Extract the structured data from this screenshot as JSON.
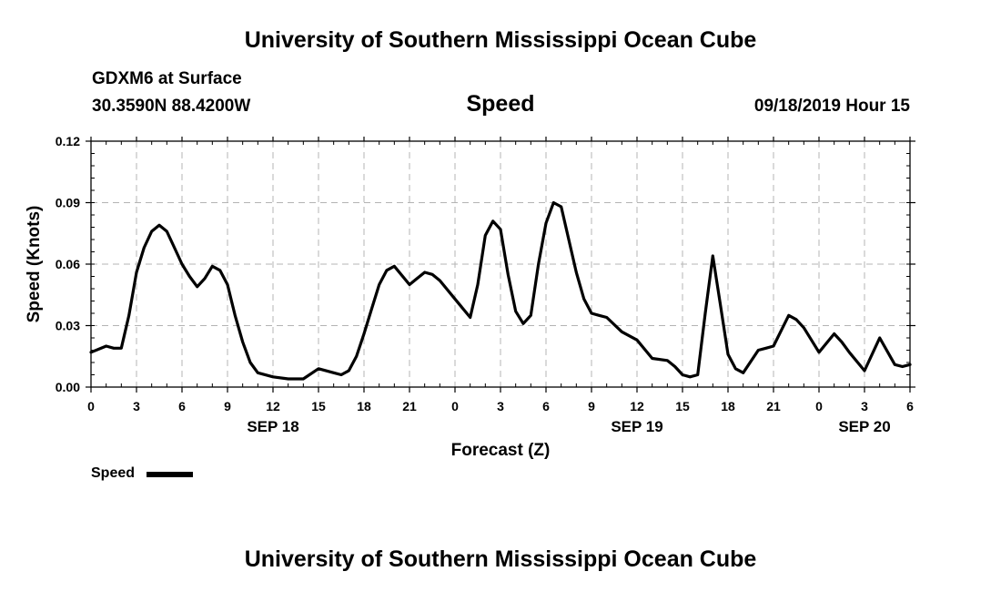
{
  "header": {
    "title": "University of Southern Mississippi Ocean Cube",
    "station": "GDXM6 at Surface",
    "location": "30.3590N 88.4200W",
    "datetime": "09/18/2019 Hour 15"
  },
  "footer": {
    "title": "University of Southern Mississippi Ocean Cube"
  },
  "chart_data": {
    "type": "line",
    "title": "Speed",
    "xlabel": "Forecast (Z)",
    "ylabel": "Speed (Knots)",
    "xlim": [
      0,
      54
    ],
    "ylim": [
      0,
      0.12
    ],
    "grid": true,
    "x_ticks": [
      0,
      3,
      6,
      9,
      12,
      15,
      18,
      21,
      24,
      27,
      30,
      33,
      36,
      39,
      42,
      45,
      48,
      51,
      54
    ],
    "x_tick_labels": [
      "0",
      "3",
      "6",
      "9",
      "12",
      "15",
      "18",
      "21",
      "0",
      "3",
      "6",
      "9",
      "12",
      "15",
      "18",
      "21",
      "0",
      "3",
      "6"
    ],
    "y_ticks": [
      0,
      0.03,
      0.06,
      0.09,
      0.12
    ],
    "y_tick_labels": [
      "0.00",
      "0.03",
      "0.06",
      "0.09",
      "0.12"
    ],
    "date_labels": [
      {
        "label": "SEP 18",
        "x": 12
      },
      {
        "label": "SEP 19",
        "x": 36
      },
      {
        "label": "SEP 20",
        "x": 51
      }
    ],
    "legend": {
      "label": "Speed",
      "position": "bottom-left"
    },
    "series": [
      {
        "name": "Speed",
        "color": "#000000",
        "x": [
          0,
          1,
          1.5,
          2,
          2.5,
          3,
          3.5,
          4,
          4.5,
          5,
          5.5,
          6,
          6.5,
          7,
          7.5,
          8,
          8.5,
          9,
          9.5,
          10,
          10.5,
          11,
          12,
          13,
          14,
          15,
          16,
          16.5,
          17,
          17.5,
          18,
          18.5,
          19,
          19.5,
          20,
          21,
          21.5,
          22,
          22.5,
          23,
          24,
          25,
          25.5,
          26,
          26.5,
          27,
          27.5,
          28,
          28.5,
          29,
          29.5,
          30,
          30.5,
          31,
          31.5,
          32,
          32.5,
          33,
          33.5,
          34,
          35,
          36,
          37,
          38,
          38.5,
          39,
          39.5,
          40,
          40.5,
          41,
          41.5,
          42,
          42.5,
          43,
          44,
          44.5,
          45,
          46,
          46.5,
          47,
          48,
          49,
          49.5,
          50,
          51,
          52,
          53,
          53.5,
          54
        ],
        "values": [
          0.017,
          0.02,
          0.019,
          0.019,
          0.035,
          0.056,
          0.068,
          0.076,
          0.079,
          0.076,
          0.068,
          0.06,
          0.054,
          0.049,
          0.053,
          0.059,
          0.057,
          0.05,
          0.035,
          0.022,
          0.012,
          0.007,
          0.005,
          0.004,
          0.004,
          0.009,
          0.007,
          0.006,
          0.008,
          0.015,
          0.026,
          0.038,
          0.05,
          0.057,
          0.059,
          0.05,
          0.053,
          0.056,
          0.055,
          0.052,
          0.043,
          0.034,
          0.05,
          0.074,
          0.081,
          0.077,
          0.055,
          0.037,
          0.031,
          0.035,
          0.06,
          0.08,
          0.09,
          0.088,
          0.072,
          0.056,
          0.043,
          0.036,
          0.035,
          0.034,
          0.027,
          0.023,
          0.014,
          0.013,
          0.01,
          0.006,
          0.005,
          0.006,
          0.036,
          0.064,
          0.04,
          0.016,
          0.009,
          0.007,
          0.018,
          0.019,
          0.02,
          0.035,
          0.033,
          0.029,
          0.017,
          0.026,
          0.022,
          0.017,
          0.008,
          0.024,
          0.011,
          0.01,
          0.011
        ]
      }
    ]
  }
}
